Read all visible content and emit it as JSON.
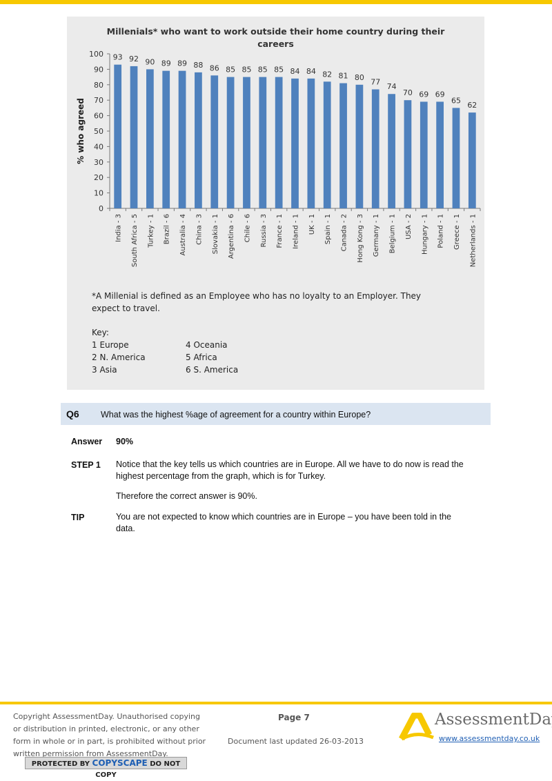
{
  "chart_data": {
    "type": "bar",
    "title": "Millenials* who want to work outside their home country during their careers",
    "ylabel": "% who agreed",
    "xlabel": "",
    "ylim": [
      0,
      100
    ],
    "y_ticks": [
      0,
      10,
      20,
      30,
      40,
      50,
      60,
      70,
      80,
      90,
      100
    ],
    "categories": [
      "India - 3",
      "South Africa - 5",
      "Turkey - 1",
      "Brazil - 6",
      "Australia - 4",
      "China - 3",
      "Slovakia - 1",
      "Argentina - 6",
      "Chile - 6",
      "Russia - 3",
      "France - 1",
      "Ireland - 1",
      "UK - 1",
      "Spain - 1",
      "Canada - 2",
      "Hong Kong - 3",
      "Germany - 1",
      "Belgium - 1",
      "USA - 2",
      "Hungary - 1",
      "Poland - 1",
      "Greece - 1",
      "Netherlands - 1"
    ],
    "values": [
      93,
      92,
      90,
      89,
      89,
      88,
      86,
      85,
      85,
      85,
      85,
      84,
      84,
      82,
      81,
      80,
      77,
      74,
      70,
      69,
      69,
      65,
      62
    ],
    "bar_color": "#4f81bd",
    "grid": false,
    "legend": "none"
  },
  "footnote": "*A Millenial is defined as an Employee who has no loyalty to an Employer. They expect to travel.",
  "key": {
    "title": "Key:",
    "items": [
      "1 Europe",
      "2 N. America",
      "3 Asia",
      "4 Oceania",
      "5 Africa",
      "6 S. America"
    ]
  },
  "question": {
    "number": "Q6",
    "text": "What was the highest %age of agreement for a country within Europe?"
  },
  "answer": {
    "label": "Answer",
    "value": "90%"
  },
  "step1": {
    "label": "STEP 1",
    "text": "Notice that the key tells us which countries are in Europe. All we have to do now is read the highest percentage from the graph, which is for Turkey.",
    "conclusion": "Therefore the correct answer is 90%."
  },
  "tip": {
    "label": "TIP",
    "text": "You are not expected to know which countries are in Europe – you have been told in the data."
  },
  "footer": {
    "copyright": "Copyright AssessmentDay. Unauthorised copying or distribution in printed, electronic, or any other form in whole or in part, is prohibited without prior written permission from AssessmentDay.",
    "copyscape_pre": "PROTECTED BY",
    "copyscape_brand": "COPYSCAPE",
    "copyscape_post": "DO NOT COPY",
    "page": "Page 7",
    "updated": "Document last updated 26-03-2013",
    "brand": "AssessmentDay",
    "url": "www.assessmentday.co.uk",
    "brand_color": "#f7c800",
    "icon": "assessmentday-logo-icon"
  }
}
